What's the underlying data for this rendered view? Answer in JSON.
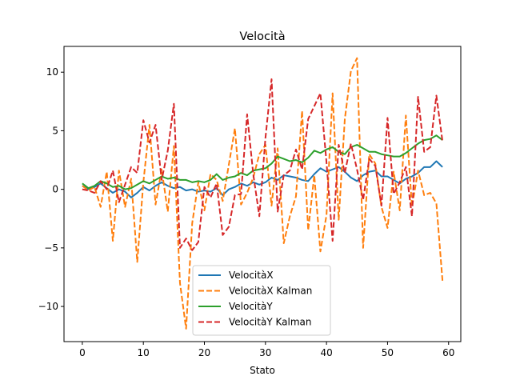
{
  "chart_data": {
    "type": "line",
    "title": "Velocità",
    "xlabel": "Stato",
    "ylabel": "",
    "xlim": [
      -3,
      62
    ],
    "ylim": [
      -13,
      12.2
    ],
    "xticks": [
      0,
      10,
      20,
      30,
      40,
      50,
      60
    ],
    "yticks": [
      -10,
      -5,
      0,
      5,
      10
    ],
    "xtick_labels": [
      "0",
      "10",
      "20",
      "30",
      "40",
      "50",
      "60"
    ],
    "ytick_labels": [
      "−10",
      "−5",
      "0",
      "5",
      "10"
    ],
    "grid": false,
    "legend_position": "lower-center",
    "x": [
      0,
      1,
      2,
      3,
      4,
      5,
      6,
      7,
      8,
      9,
      10,
      11,
      12,
      13,
      14,
      15,
      16,
      17,
      18,
      19,
      20,
      21,
      22,
      23,
      24,
      25,
      26,
      27,
      28,
      29,
      30,
      31,
      32,
      33,
      34,
      35,
      36,
      37,
      38,
      39,
      40,
      41,
      42,
      43,
      44,
      45,
      46,
      47,
      48,
      49,
      50,
      51,
      52,
      53,
      54,
      55,
      56,
      57,
      58,
      59
    ],
    "series": [
      {
        "name": "VelocitàX",
        "color": "#1f77b4",
        "dash": "solid",
        "values": [
          0.3,
          0.0,
          0.2,
          0.5,
          0.1,
          -0.3,
          0.0,
          -0.2,
          -0.7,
          -0.3,
          0.2,
          -0.1,
          0.3,
          0.6,
          0.3,
          0.1,
          0.2,
          -0.1,
          0.0,
          -0.2,
          -0.1,
          -0.2,
          0.1,
          -0.5,
          0.0,
          0.2,
          0.5,
          0.3,
          0.6,
          0.4,
          0.6,
          1.0,
          0.8,
          1.2,
          1.1,
          1.0,
          0.8,
          0.7,
          1.3,
          1.8,
          1.5,
          1.7,
          1.9,
          1.5,
          1.0,
          0.7,
          1.2,
          1.5,
          1.6,
          1.1,
          1.1,
          0.8,
          0.5,
          0.9,
          1.1,
          1.4,
          1.9,
          1.9,
          2.4,
          1.9
        ]
      },
      {
        "name": "VelocitàX Kalman",
        "color": "#ff7f0e",
        "dash": "dashed",
        "values": [
          0.3,
          -0.1,
          0.2,
          -1.5,
          1.5,
          -4.4,
          1.6,
          -1.5,
          0.9,
          -6.2,
          0.6,
          5.5,
          -1.3,
          1.7,
          -1.9,
          3.7,
          -8.0,
          -11.9,
          -2.9,
          0.6,
          -1.8,
          1.3,
          0.8,
          -1.0,
          2.1,
          5.2,
          -1.3,
          -0.3,
          1.0,
          3.0,
          3.8,
          -1.4,
          3.5,
          -4.6,
          -2.3,
          -0.6,
          6.7,
          -3.5,
          1.2,
          -5.3,
          -2.2,
          8.2,
          -2.6,
          6.0,
          10.1,
          11.2,
          -5.0,
          3.0,
          2.2,
          -1.5,
          -3.3,
          1.5,
          -1.8,
          6.3,
          -1.5,
          1.6,
          -0.5,
          -0.3,
          -1.2,
          -7.8
        ]
      },
      {
        "name": "VelocitàY",
        "color": "#2ca02c",
        "dash": "solid",
        "values": [
          0.5,
          0.1,
          0.3,
          0.7,
          0.5,
          0.2,
          0.3,
          0.0,
          0.1,
          0.4,
          0.7,
          0.5,
          0.8,
          1.1,
          0.9,
          1.0,
          0.8,
          0.8,
          0.6,
          0.7,
          0.6,
          0.8,
          1.3,
          0.8,
          1.0,
          1.1,
          1.4,
          1.2,
          1.6,
          1.7,
          1.8,
          2.2,
          2.8,
          2.6,
          2.4,
          2.5,
          2.3,
          2.7,
          3.3,
          3.1,
          3.4,
          3.6,
          3.2,
          3.0,
          3.6,
          3.8,
          3.5,
          3.2,
          3.2,
          3.0,
          2.9,
          2.8,
          2.8,
          3.1,
          3.5,
          3.9,
          4.2,
          4.3,
          4.6,
          4.2
        ]
      },
      {
        "name": "VelocitàY Kalman",
        "color": "#d62728",
        "dash": "dashed",
        "values": [
          0.0,
          -0.1,
          -0.3,
          0.7,
          0.0,
          1.6,
          -1.1,
          0.4,
          1.9,
          1.4,
          5.9,
          4.0,
          5.5,
          0.8,
          3.3,
          7.3,
          -5.0,
          -4.2,
          -5.2,
          -4.5,
          0.2,
          -0.7,
          0.5,
          -3.9,
          -3.2,
          -0.5,
          -0.4,
          6.4,
          1.3,
          -2.3,
          4.4,
          9.4,
          -1.9,
          1.2,
          1.6,
          3.4,
          1.7,
          6.0,
          7.1,
          8.2,
          2.3,
          -4.4,
          3.8,
          1.4,
          3.9,
          1.7,
          -0.9,
          2.6,
          2.0,
          -1.4,
          6.1,
          -0.4,
          0.6,
          1.9,
          -2.3,
          7.9,
          3.2,
          3.6,
          8.0,
          4.1
        ]
      }
    ]
  }
}
